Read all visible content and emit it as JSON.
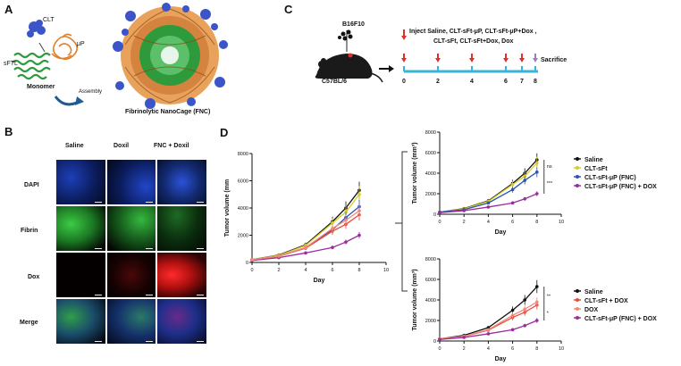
{
  "panels": {
    "A": {
      "letter": "A",
      "labels": {
        "clt": "CLT",
        "mup": "μP",
        "sftl": "sFTL",
        "monomer": "Monomer",
        "assembly": "Assembly",
        "cage": "Fibrinolytic NanoCage (FNC)"
      },
      "colors": {
        "clt": "#3b55c8",
        "mup": "#e0802a",
        "sftl": "#2f9a3c"
      }
    },
    "B": {
      "letter": "B",
      "columns": [
        "Saline",
        "Doxil",
        "FNC + Doxil"
      ],
      "rows": [
        "DAPI",
        "Fibrin",
        "Dox",
        "Merge"
      ],
      "colors": {
        "DAPI": "#2a52d8",
        "Fibrin": "#2fb83a",
        "Dox": "#e21a1a",
        "Merge_bg": "#0a0a14"
      }
    },
    "C": {
      "letter": "C",
      "cell_line": "B16F10",
      "mouse": "C57BL/6",
      "inject_text_1": "Inject Saline, CLT-sFt-μP,  CLT-sFt-μP+Dox ,",
      "inject_text_2": "CLT-sFt, CLT-sFt+Dox, Dox",
      "sacrifice": "Sacrifice",
      "days": [
        "0",
        "2",
        "4",
        "6",
        "7",
        "8"
      ],
      "arrow_color": "#e0302a",
      "sacrifice_arrow_color": "#9a7cc0",
      "timeline_color": "#35b6d8"
    },
    "D": {
      "letter": "D"
    }
  },
  "chart_data": [
    {
      "type": "line",
      "id": "combined",
      "ylabel": "Tumor volume (mm",
      "xlabel": "Day",
      "ylim": [
        0,
        8000
      ],
      "xlim": [
        0,
        10
      ],
      "yticks": [
        "0",
        "2000",
        "4000",
        "6000",
        "8000"
      ],
      "xticks": [
        "0",
        "2",
        "4",
        "6",
        "8",
        "10"
      ],
      "x": [
        0,
        2,
        4,
        6,
        7,
        8
      ],
      "series": [
        {
          "color": "#111111",
          "values": [
            200,
            550,
            1300,
            3000,
            4000,
            5300
          ]
        },
        {
          "color": "#d4cc2a",
          "values": [
            200,
            520,
            1250,
            2900,
            3700,
            5000
          ]
        },
        {
          "color": "#2a55b5",
          "values": [
            200,
            450,
            1100,
            2400,
            3300,
            4100
          ]
        },
        {
          "color": "#9a2c9e",
          "values": [
            150,
            350,
            700,
            1100,
            1500,
            2000
          ]
        },
        {
          "color": "#e84a3a",
          "values": [
            200,
            450,
            1050,
            2300,
            2800,
            3500
          ]
        },
        {
          "color": "#f28a7a",
          "values": [
            200,
            470,
            1100,
            2500,
            3100,
            3800
          ]
        }
      ]
    },
    {
      "type": "line",
      "id": "top",
      "ylabel": "Tumor volume (mm³)",
      "xlabel": "Day",
      "ylim": [
        0,
        8000
      ],
      "xlim": [
        0,
        10
      ],
      "yticks": [
        "0",
        "2000",
        "4000",
        "6000",
        "8000"
      ],
      "xticks": [
        "0",
        "2",
        "4",
        "6",
        "8",
        "10"
      ],
      "x": [
        0,
        2,
        4,
        6,
        7,
        8
      ],
      "series": [
        {
          "name": "Saline",
          "color": "#111111",
          "values": [
            200,
            550,
            1300,
            3000,
            4000,
            5300
          ]
        },
        {
          "name": "CLT-sFt",
          "color": "#d4cc2a",
          "values": [
            200,
            520,
            1250,
            2900,
            3700,
            5000
          ]
        },
        {
          "name": "CLT-sFt-μP (FNC)",
          "color": "#2a55b5",
          "values": [
            200,
            450,
            1100,
            2400,
            3300,
            4100
          ]
        },
        {
          "name": "CLT-sFt-μP (FNC) + DOX",
          "color": "#9a2c9e",
          "values": [
            150,
            350,
            700,
            1100,
            1500,
            2000
          ]
        }
      ],
      "annotations": [
        "ns",
        "***"
      ],
      "legend": "right"
    },
    {
      "type": "line",
      "id": "bottom",
      "ylabel": "Tumor volume (mm³)",
      "xlabel": "Day",
      "ylim": [
        0,
        8000
      ],
      "xlim": [
        0,
        10
      ],
      "yticks": [
        "0",
        "2000",
        "4000",
        "6000",
        "8000"
      ],
      "xticks": [
        "0",
        "2",
        "4",
        "6",
        "8",
        "10"
      ],
      "x": [
        0,
        2,
        4,
        6,
        7,
        8
      ],
      "series": [
        {
          "name": "Saline",
          "color": "#111111",
          "values": [
            200,
            550,
            1300,
            3000,
            4000,
            5300
          ]
        },
        {
          "name": "CLT-sFt + DOX",
          "color": "#e84a3a",
          "values": [
            200,
            450,
            1050,
            2300,
            2800,
            3500
          ]
        },
        {
          "name": "DOX",
          "color": "#f28a7a",
          "values": [
            200,
            470,
            1100,
            2500,
            3100,
            3800
          ]
        },
        {
          "name": "CLT-sFt-μP (FNC) + DOX",
          "color": "#9a2c9e",
          "values": [
            150,
            350,
            700,
            1100,
            1500,
            2000
          ]
        }
      ],
      "annotations": [
        "**",
        "*"
      ],
      "legend": "right"
    }
  ]
}
